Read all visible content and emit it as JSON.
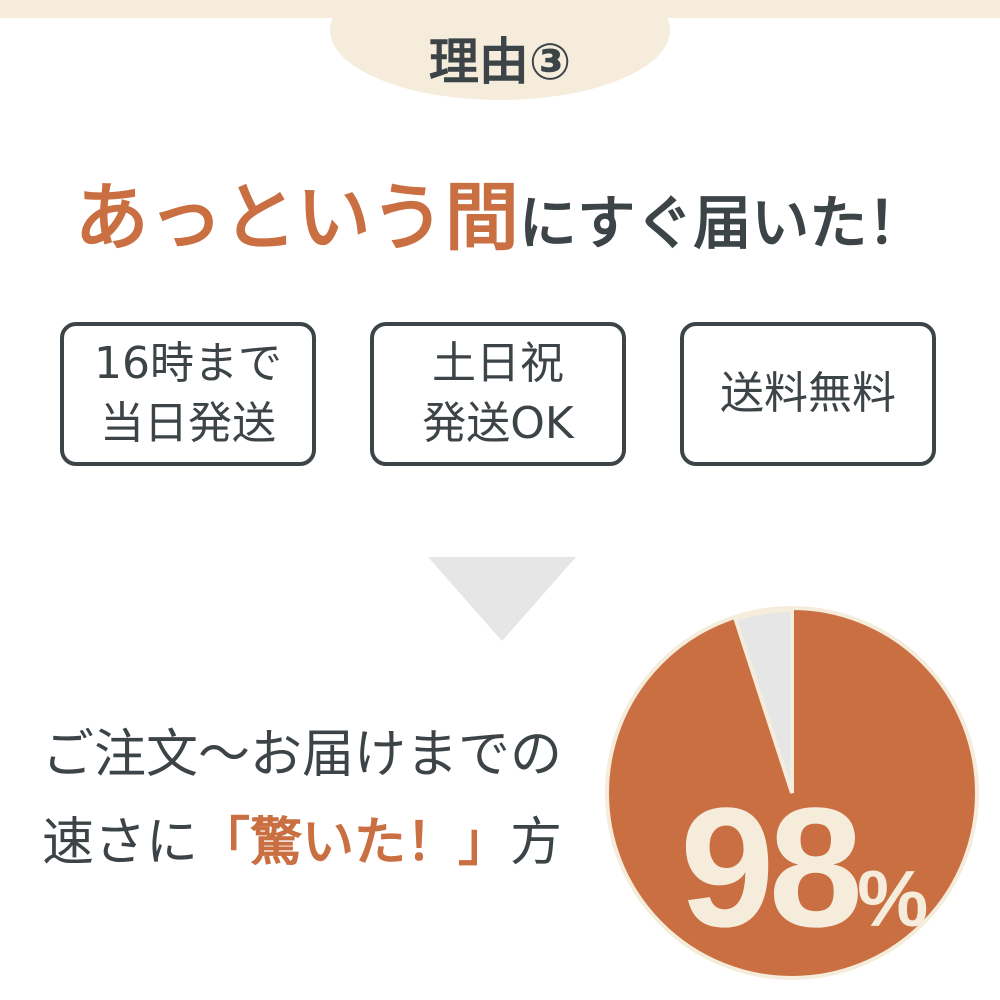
{
  "badge": {
    "label": "理由③"
  },
  "headline": {
    "accent": "あっという間",
    "rest": "にすぐ届いた！"
  },
  "features": [
    {
      "line1": "16時まで",
      "line2": "当日発送"
    },
    {
      "line1": "土日祝",
      "line2": "発送OK"
    },
    {
      "line1": "送料無料",
      "line2": ""
    }
  ],
  "caption": {
    "line1": "ご注文〜お届けまでの",
    "line2_pre": "速さに",
    "line2_accent": "「驚いた！」",
    "line2_post": "方"
  },
  "pie": {
    "value_percent": 98,
    "number": "98",
    "unit": "%",
    "colors": {
      "main": "#c96f41",
      "rest": "#e6e6e6",
      "border": "#f5ecdc"
    }
  }
}
